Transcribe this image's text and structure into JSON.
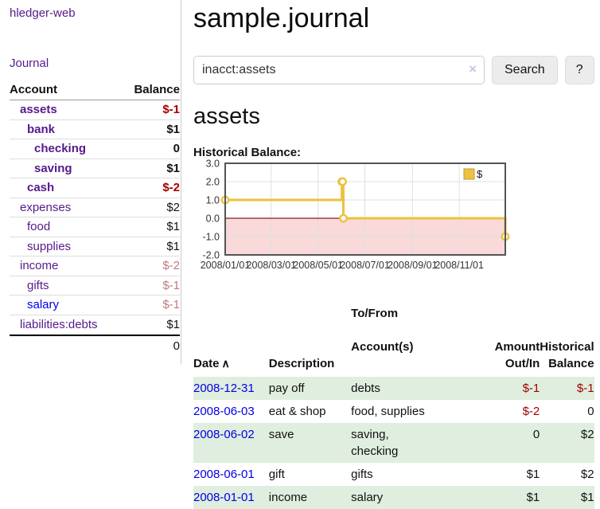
{
  "sidebar": {
    "brand": "hledger-web",
    "journal_link": "Journal",
    "accounts_header": {
      "account": "Account",
      "balance": "Balance"
    },
    "accounts": [
      {
        "name": "assets",
        "indent": 1,
        "bold": true,
        "balance": "$-1",
        "neg": "strong"
      },
      {
        "name": "bank",
        "indent": 2,
        "bold": true,
        "balance": "$1",
        "neg": "none"
      },
      {
        "name": "checking",
        "indent": 3,
        "bold": true,
        "balance": "0",
        "neg": "none"
      },
      {
        "name": "saving",
        "indent": 3,
        "bold": true,
        "balance": "$1",
        "neg": "none"
      },
      {
        "name": "cash",
        "indent": 2,
        "bold": true,
        "balance": "$-2",
        "neg": "strong"
      },
      {
        "name": "expenses",
        "indent": 1,
        "bold": false,
        "balance": "$2",
        "neg": "none"
      },
      {
        "name": "food",
        "indent": 2,
        "bold": false,
        "balance": "$1",
        "neg": "none"
      },
      {
        "name": "supplies",
        "indent": 2,
        "bold": false,
        "balance": "$1",
        "neg": "none"
      },
      {
        "name": "income",
        "indent": 1,
        "bold": false,
        "balance": "$-2",
        "neg": "soft"
      },
      {
        "name": "gifts",
        "indent": 2,
        "bold": false,
        "balance": "$-1",
        "neg": "soft"
      },
      {
        "name": "salary",
        "indent": 2,
        "bold": false,
        "balance": "$-1",
        "neg": "soft",
        "link_unvisited": true
      },
      {
        "name": "liabilities:debts",
        "indent": 1,
        "bold": false,
        "balance": "$1",
        "neg": "none"
      }
    ],
    "total": "0"
  },
  "header": {
    "title": "sample.journal"
  },
  "search": {
    "value": "inacct:assets",
    "clear_icon": "×",
    "button_label": "Search",
    "help_label": "?"
  },
  "account_page": {
    "heading": "assets",
    "chart_label": "Historical Balance:"
  },
  "chart_data": {
    "type": "line",
    "title": "Historical Balance:",
    "step": true,
    "series": [
      {
        "name": "$",
        "color": "#edc240",
        "points": [
          [
            "2008-01-01",
            1
          ],
          [
            "2008-06-01",
            2
          ],
          [
            "2008-06-02",
            2
          ],
          [
            "2008-06-03",
            0
          ],
          [
            "2008-12-31",
            -1
          ]
        ]
      }
    ],
    "x_range": [
      "2008-01-01",
      "2008-12-31"
    ],
    "ylim": [
      -2,
      3
    ],
    "yticks": [
      3.0,
      2.0,
      1.0,
      0.0,
      -1.0,
      -2.0
    ],
    "xticks": [
      "2008-01-01",
      "2008-03-01",
      "2008-05-01",
      "2008-07-01",
      "2008-09-01",
      "2008-11-01"
    ],
    "grid": true,
    "legend_position": "top-right",
    "negative_region": {
      "fill": "#f9d9d9",
      "line": "#8b1a1a"
    },
    "grid_color": "#e0e0e0",
    "border_color": "#545454"
  },
  "register": {
    "columns": {
      "date": "Date",
      "sort_icon": "∧",
      "description": "Description",
      "tofrom_line1": "To/From",
      "tofrom_line2": "Account(s)",
      "amount_line1": "Amount",
      "amount_line2": "Out/In",
      "balance_line1": "Historical",
      "balance_line2": "Balance"
    },
    "rows": [
      {
        "date": "2008-12-31",
        "description": "pay off",
        "accounts": [
          "debts"
        ],
        "amount": "$-1",
        "amount_neg": true,
        "balance": "$-1",
        "balance_neg": true
      },
      {
        "date": "2008-06-03",
        "description": "eat & shop",
        "accounts": [
          "food, supplies"
        ],
        "amount": "$-2",
        "amount_neg": true,
        "balance": "0",
        "balance_neg": false
      },
      {
        "date": "2008-06-02",
        "description": "save",
        "accounts": [
          "saving,",
          "checking"
        ],
        "amount": "0",
        "amount_neg": false,
        "balance": "$2",
        "balance_neg": false
      },
      {
        "date": "2008-06-01",
        "description": "gift",
        "accounts": [
          "gifts"
        ],
        "amount": "$1",
        "amount_neg": false,
        "balance": "$2",
        "balance_neg": false
      },
      {
        "date": "2008-01-01",
        "description": "income",
        "accounts": [
          "salary"
        ],
        "amount": "$1",
        "amount_neg": false,
        "balance": "$1",
        "balance_neg": false
      }
    ]
  },
  "colors": {
    "link_purple": "#551a8b",
    "link_blue": "#0000e6",
    "negative_strong": "#a40000",
    "negative_soft": "#bd7b7b",
    "row_stripe_green": "#dfeede",
    "series_yellow": "#edc240"
  }
}
